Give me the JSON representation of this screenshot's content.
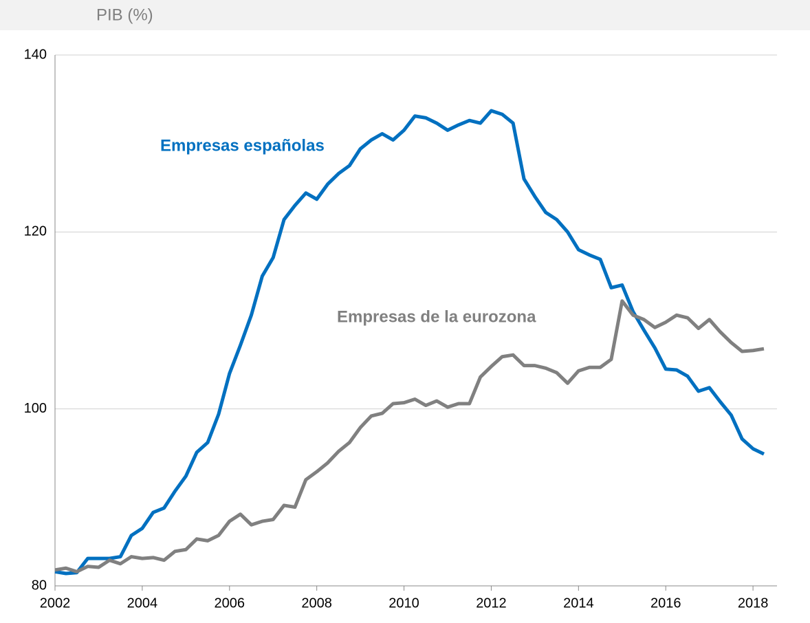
{
  "chart_data": {
    "type": "line",
    "title": "PIB (%)",
    "x": [
      2002,
      2002.25,
      2002.5,
      2002.75,
      2003,
      2003.25,
      2003.5,
      2003.75,
      2004,
      2004.25,
      2004.5,
      2004.75,
      2005,
      2005.25,
      2005.5,
      2005.75,
      2006,
      2006.25,
      2006.5,
      2006.75,
      2007,
      2007.25,
      2007.5,
      2007.75,
      2008,
      2008.25,
      2008.5,
      2008.75,
      2009,
      2009.25,
      2009.5,
      2009.75,
      2010,
      2010.25,
      2010.5,
      2010.75,
      2011,
      2011.25,
      2011.5,
      2011.75,
      2012,
      2012.25,
      2012.5,
      2012.75,
      2013,
      2013.25,
      2013.5,
      2013.75,
      2014,
      2014.25,
      2014.5,
      2014.75,
      2015,
      2015.25,
      2015.5,
      2015.75,
      2016,
      2016.25,
      2016.5,
      2016.75,
      2017,
      2017.25,
      2017.5,
      2017.75,
      2018,
      2018.25
    ],
    "series": [
      {
        "name": "Empresas españolas",
        "color": "#0070c0",
        "values": [
          81.6,
          81.4,
          81.5,
          83.1,
          83.1,
          83.1,
          83.3,
          85.7,
          86.5,
          88.3,
          88.8,
          90.7,
          92.4,
          95.1,
          96.2,
          99.4,
          104.0,
          107.2,
          110.6,
          115.0,
          117.1,
          121.4,
          123.0,
          124.4,
          123.7,
          125.4,
          126.6,
          127.5,
          129.4,
          130.4,
          131.1,
          130.4,
          131.5,
          133.1,
          132.9,
          132.3,
          131.5,
          132.1,
          132.6,
          132.3,
          133.7,
          133.3,
          132.3,
          126.0,
          124.0,
          122.2,
          121.4,
          120.0,
          118.0,
          117.4,
          116.9,
          113.7,
          114.0,
          111.0,
          108.9,
          106.9,
          104.5,
          104.4,
          103.7,
          102.0,
          102.4,
          100.8,
          99.3,
          96.6,
          95.5,
          94.9
        ]
      },
      {
        "name": "Empresas de la eurozona",
        "color": "#808080",
        "values": [
          81.8,
          82.0,
          81.6,
          82.2,
          82.1,
          82.9,
          82.5,
          83.3,
          83.1,
          83.2,
          82.9,
          83.9,
          84.1,
          85.3,
          85.1,
          85.7,
          87.3,
          88.1,
          86.9,
          87.3,
          87.5,
          89.1,
          88.9,
          92.0,
          92.9,
          93.9,
          95.2,
          96.2,
          97.9,
          99.2,
          99.5,
          100.6,
          100.7,
          101.1,
          100.4,
          100.9,
          100.2,
          100.6,
          100.6,
          103.6,
          104.8,
          105.9,
          106.1,
          104.9,
          104.9,
          104.6,
          104.1,
          102.9,
          104.3,
          104.7,
          104.7,
          105.6,
          112.2,
          110.6,
          110.1,
          109.2,
          109.8,
          110.6,
          110.3,
          109.1,
          110.1,
          108.7,
          107.5,
          106.5,
          106.6,
          106.8
        ]
      }
    ],
    "xlim": [
      2002,
      2018.55
    ],
    "xticks": [
      2002,
      2004,
      2006,
      2008,
      2010,
      2012,
      2014,
      2016,
      2018
    ],
    "ylim": [
      80,
      140
    ],
    "yticks": [
      80,
      100,
      120,
      140
    ],
    "grid": true
  }
}
